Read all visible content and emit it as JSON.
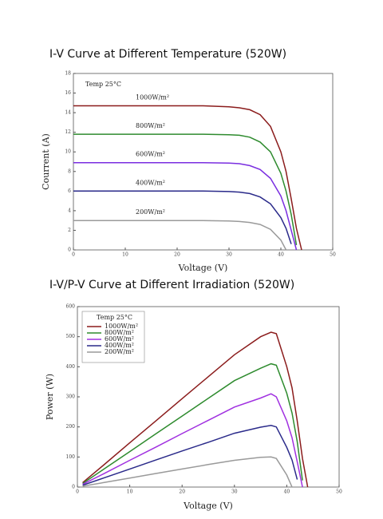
{
  "chart_data": [
    {
      "type": "line",
      "title": "I-V Curve at Different Temperature (520W)",
      "x_label": "Voltage (V)",
      "y_label": "Courrent (A)",
      "annotation": "Temp 25°C",
      "legend": "inline",
      "x": [
        0,
        5,
        10,
        15,
        20,
        25,
        30,
        32,
        34,
        36,
        38,
        40,
        41,
        42,
        43,
        44
      ],
      "series": [
        {
          "name": "1000W/m²",
          "color": "#8b1c1c",
          "values": [
            14.7,
            14.7,
            14.7,
            14.7,
            14.7,
            14.7,
            14.6,
            14.5,
            14.3,
            13.8,
            12.6,
            10.0,
            8.0,
            5.2,
            2.2,
            0
          ]
        },
        {
          "name": "800W/m²",
          "color": "#2e8b2e",
          "values": [
            11.8,
            11.8,
            11.8,
            11.8,
            11.8,
            11.8,
            11.75,
            11.7,
            11.5,
            11.0,
            10.0,
            7.8,
            6.0,
            3.6,
            0.5,
            null
          ]
        },
        {
          "name": "600W/m²",
          "color": "#7a2ee0",
          "values": [
            8.9,
            8.9,
            8.9,
            8.9,
            8.9,
            8.9,
            8.85,
            8.8,
            8.6,
            8.2,
            7.3,
            5.5,
            4.0,
            2.0,
            0,
            null
          ]
        },
        {
          "name": "400W/m²",
          "color": "#2a2a8a",
          "values": [
            6.0,
            6.0,
            6.0,
            6.0,
            6.0,
            6.0,
            5.95,
            5.9,
            5.75,
            5.4,
            4.7,
            3.3,
            2.2,
            0.6,
            null,
            null
          ]
        },
        {
          "name": "200W/m²",
          "color": "#9a9a9a",
          "values": [
            3.0,
            3.0,
            3.0,
            3.0,
            3.0,
            3.0,
            2.95,
            2.9,
            2.8,
            2.6,
            2.1,
            1.0,
            0,
            null,
            null,
            null
          ]
        }
      ],
      "xlim": [
        0,
        50
      ],
      "xticks": [
        0,
        10,
        20,
        30,
        40,
        50
      ],
      "ylim": [
        0,
        18
      ],
      "yticks": [
        0,
        2,
        4,
        6,
        8,
        10,
        12,
        14,
        16,
        18
      ]
    },
    {
      "type": "line",
      "title": "I-V/P-V Curve at Different Irradiation (520W)",
      "x_label": "Voltage (V)",
      "y_label": "Power (W)",
      "annotation": "Temp 25°C",
      "legend": "upper left",
      "x": [
        1,
        5,
        10,
        15,
        20,
        25,
        30,
        35,
        37,
        38,
        40,
        41,
        42,
        43,
        44
      ],
      "series": [
        {
          "name": "1000W/m²",
          "color": "#8b1c1c",
          "values": [
            15,
            73,
            147,
            220,
            294,
            367,
            440,
            500,
            515,
            510,
            400,
            330,
            220,
            95,
            0
          ]
        },
        {
          "name": "800W/m²",
          "color": "#2e8b2e",
          "values": [
            12,
            59,
            118,
            177,
            236,
            295,
            354,
            395,
            410,
            405,
            312,
            246,
            151,
            22,
            null
          ]
        },
        {
          "name": "600W/m²",
          "color": "#a030e0",
          "values": [
            9,
            44,
            89,
            133,
            178,
            222,
            266,
            296,
            310,
            300,
            220,
            164,
            84,
            0,
            null
          ]
        },
        {
          "name": "400W/m²",
          "color": "#2a2a8a",
          "values": [
            6,
            30,
            60,
            90,
            120,
            149,
            179,
            199,
            205,
            200,
            132,
            90,
            25,
            null,
            null
          ]
        },
        {
          "name": "200W/m²",
          "color": "#9a9a9a",
          "values": [
            3,
            15,
            30,
            45,
            60,
            75,
            89,
            99,
            100,
            95,
            40,
            0,
            null,
            null,
            null
          ]
        }
      ],
      "xlim": [
        0,
        50
      ],
      "xticks": [
        0,
        10,
        20,
        30,
        40,
        50
      ],
      "ylim": [
        0,
        600
      ],
      "yticks": [
        0,
        100,
        200,
        300,
        400,
        500,
        600
      ]
    }
  ]
}
